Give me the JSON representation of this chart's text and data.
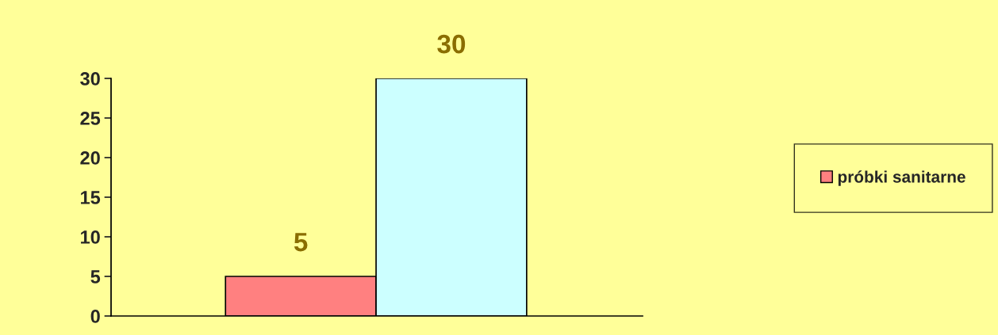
{
  "chart_data": {
    "type": "bar",
    "categories": [
      null,
      null
    ],
    "series": [
      {
        "name": "próbki sanitarne",
        "color": "#ff8080",
        "colors": [
          "#ff8080",
          "#ccffff"
        ],
        "values": [
          5,
          30
        ]
      }
    ],
    "ylim": [
      0,
      30
    ],
    "yticks": [
      0,
      5,
      10,
      15,
      20,
      25,
      30
    ],
    "data_labels": true,
    "legend": "right",
    "grid": false
  }
}
